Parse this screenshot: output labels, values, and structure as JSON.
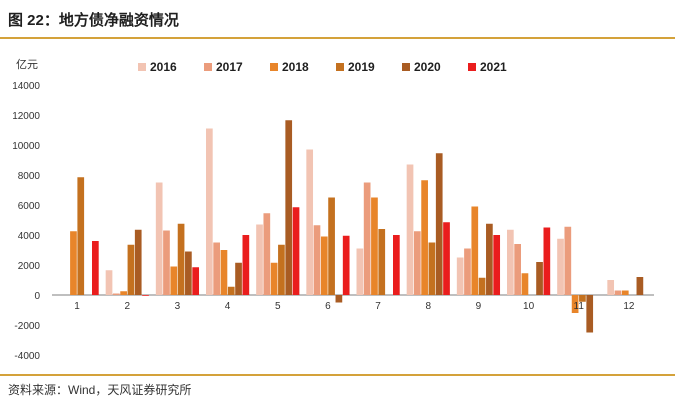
{
  "figure_title": "图 22：地方债净融资情况",
  "source_note": "资料来源：Wind，天风证券研究所",
  "chart_data": {
    "type": "bar",
    "title": "",
    "xlabel": "",
    "ylabel": "亿元",
    "ylim": [
      -4000,
      14000
    ],
    "yticks": [
      "14000",
      "12000",
      "10000",
      "8000",
      "6000",
      "4000",
      "2000",
      "0",
      "-2000",
      "-4000"
    ],
    "grid": false,
    "legend_position": "top",
    "categories": [
      "1",
      "2",
      "3",
      "4",
      "5",
      "6",
      "7",
      "8",
      "9",
      "10",
      "11",
      "12"
    ],
    "series": [
      {
        "name": "2016",
        "color": "#f2c4b3",
        "values": [
          0,
          1650,
          7500,
          11100,
          4700,
          9700,
          3100,
          8700,
          2500,
          4350,
          3750,
          1000
        ]
      },
      {
        "name": "2017",
        "color": "#eb9c7c",
        "values": [
          0,
          100,
          4300,
          3500,
          5450,
          4650,
          7500,
          4250,
          3100,
          3400,
          4550,
          300
        ]
      },
      {
        "name": "2018",
        "color": "#e8852a",
        "values": [
          4250,
          250,
          1900,
          3000,
          2150,
          3900,
          6500,
          7650,
          5900,
          1450,
          -1200,
          300
        ]
      },
      {
        "name": "2019",
        "color": "#c4711f",
        "values": [
          7850,
          3350,
          4750,
          550,
          3350,
          6500,
          4400,
          3500,
          1150,
          0,
          -450,
          0
        ]
      },
      {
        "name": "2020",
        "color": "#a95c23",
        "values": [
          0,
          4350,
          2900,
          2150,
          11650,
          -500,
          0,
          9450,
          4750,
          2200,
          -2500,
          1200
        ]
      },
      {
        "name": "2021",
        "color": "#ea1d1d",
        "values": [
          3600,
          -50,
          1850,
          4000,
          5850,
          3950,
          4000,
          4850,
          4000,
          4500,
          null,
          null
        ]
      }
    ]
  }
}
